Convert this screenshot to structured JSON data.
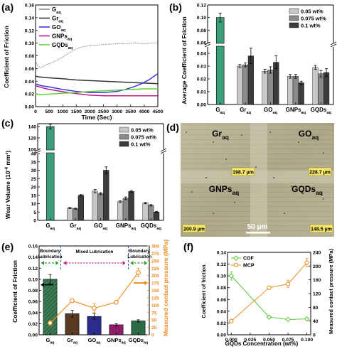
{
  "panel_labels": [
    "(a)",
    "(b)",
    "(c)",
    "(d)",
    "(e)",
    "(f)"
  ],
  "colors": {
    "Gaq": "#8c8c8c",
    "Graq": "#333333",
    "GOaq": "#3a3ae0",
    "GNPsaq": "#c2188c",
    "GQDsaq": "#62d13a",
    "bar_05": "#c8c8c8",
    "bar_075": "#8a8a8a",
    "bar_01": "#3c3c3c",
    "teal": "#3e9e7a",
    "e_bar1": "#2d6b45",
    "e_bar2": "#5a3a22",
    "e_bar3": "#2c2c8c",
    "e_bar4": "#8c1c6a",
    "e_bar5": "#2d6b45",
    "orange": "#f08a1c",
    "green_cof": "#5ac83a",
    "micro": "#b3ad8d"
  },
  "chart_data": [
    {
      "panel": "(a)",
      "type": "line",
      "xlabel": "Time (Sec)",
      "ylabel": "Coefficient of Friction",
      "xlim": [
        0,
        4500
      ],
      "ylim": [
        0.0,
        0.16
      ],
      "xticks": [
        "0",
        "500",
        "1000",
        "1500",
        "2000",
        "2500",
        "3000",
        "3500",
        "4000",
        "4500"
      ],
      "yticks": [
        "0.00",
        "0.02",
        "0.04",
        "0.06",
        "0.08",
        "0.10",
        "0.12",
        "0.14",
        "0.16"
      ],
      "legend_location": "top-left",
      "series": [
        {
          "name": "Gaq",
          "name_main": "G",
          "name_sub": "aq",
          "color": "#8c8c8c",
          "x": [
            0,
            80,
            200,
            400,
            700,
            1000,
            1300,
            1500,
            1700,
            2000,
            2300,
            2600,
            3000,
            3300,
            3600,
            4000,
            4300,
            4500
          ],
          "y": [
            0.072,
            0.064,
            0.061,
            0.066,
            0.071,
            0.078,
            0.086,
            0.091,
            0.094,
            0.096,
            0.097,
            0.098,
            0.099,
            0.099,
            0.1,
            0.099,
            0.1,
            0.1
          ]
        },
        {
          "name": "Graq",
          "name_main": "Gr",
          "name_sub": "aq",
          "color": "#333333",
          "x": [
            0,
            100,
            300,
            600,
            1000,
            1500,
            2000,
            2500,
            3000,
            3500,
            4000,
            4500
          ],
          "y": [
            0.048,
            0.047,
            0.046,
            0.045,
            0.044,
            0.042,
            0.041,
            0.04,
            0.039,
            0.038,
            0.037,
            0.036
          ]
        },
        {
          "name": "GOaq",
          "name_main": "GO",
          "name_sub": "aq",
          "color": "#3a3ae0",
          "x": [
            0,
            200,
            500,
            1000,
            1500,
            2000,
            2500,
            3000,
            3300,
            3600,
            3900,
            4200,
            4500
          ],
          "y": [
            0.036,
            0.033,
            0.031,
            0.027,
            0.024,
            0.022,
            0.022,
            0.024,
            0.027,
            0.031,
            0.036,
            0.043,
            0.052
          ]
        },
        {
          "name": "GNPsaq",
          "name_main": "GNPs",
          "name_sub": "aq",
          "color": "#c2188c",
          "x": [
            0,
            150,
            400,
            800,
            1200,
            1600,
            2000,
            2500,
            3000,
            3500,
            4000,
            4500
          ],
          "y": [
            0.033,
            0.031,
            0.028,
            0.025,
            0.022,
            0.02,
            0.018,
            0.017,
            0.017,
            0.017,
            0.017,
            0.017
          ]
        },
        {
          "name": "GQDsaq",
          "name_main": "GQDs",
          "name_sub": "aq",
          "color": "#62d13a",
          "x": [
            0,
            100,
            300,
            600,
            1000,
            1500,
            2000,
            2500,
            3000,
            3500,
            4000,
            4500
          ],
          "y": [
            0.02,
            0.019,
            0.019,
            0.02,
            0.021,
            0.022,
            0.024,
            0.025,
            0.026,
            0.027,
            0.028,
            0.028
          ]
        }
      ]
    },
    {
      "panel": "(b)",
      "type": "bar",
      "ylabel": "Average Coefficient of Friction",
      "categories": [
        "Gaq",
        "Graq",
        "GOaq",
        "GNPsaq",
        "GQDsaq"
      ],
      "category_main": [
        "G",
        "Gr",
        "GO",
        "GNPs",
        "GQDs"
      ],
      "category_sub": [
        "aq",
        "aq",
        "aq",
        "aq",
        "aq"
      ],
      "legend_location": "top-right",
      "axis_break": true,
      "ylim_lower": [
        0.0,
        0.045
      ],
      "ylim_upper": [
        0.06,
        0.12
      ],
      "yticks": [
        "0.00",
        "0.01",
        "0.02",
        "0.03",
        "0.04",
        "0.06",
        "0.08",
        "0.10",
        "0.12"
      ],
      "base_value": 0.1,
      "base_error": 0.007,
      "series": [
        {
          "name": "0.05 wt%",
          "color": "#c8c8c8",
          "values": [
            null,
            0.03,
            0.026,
            0.022,
            0.029
          ],
          "errors": [
            null,
            0.0012,
            0.0015,
            0.0015,
            0.0015
          ]
        },
        {
          "name": "0.075 wt%",
          "color": "#8a8a8a",
          "values": [
            null,
            0.031,
            0.027,
            0.022,
            0.024
          ],
          "errors": [
            null,
            0.0015,
            0.0025,
            0.0015,
            0.0025
          ]
        },
        {
          "name": "0.1 wt%",
          "color": "#3c3c3c",
          "values": [
            null,
            0.038,
            0.033,
            0.017,
            0.025
          ],
          "errors": [
            null,
            0.006,
            0.005,
            0.0012,
            0.003
          ]
        }
      ]
    },
    {
      "panel": "(c)",
      "type": "bar",
      "ylabel_main": "Wear Volume (10",
      "ylabel_sup": "-4",
      "ylabel_end": " mm³)",
      "categories": [
        "Gaq",
        "Graq",
        "GOaq",
        "GNPsaq",
        "GQDsaq"
      ],
      "category_main": [
        "G",
        "Gr",
        "GO",
        "GNPs",
        "GQDs"
      ],
      "category_sub": [
        "aq",
        "aq",
        "aq",
        "aq",
        "aq"
      ],
      "legend_location": "top-right",
      "axis_break": true,
      "ylim_lower": [
        0,
        40
      ],
      "ylim_upper": [
        100,
        145
      ],
      "yticks": [
        "0",
        "5",
        "10",
        "15",
        "20",
        "25",
        "30",
        "35",
        "40",
        "100",
        "120",
        "140"
      ],
      "base_value": 140,
      "base_error": 4,
      "series": [
        {
          "name": "0.05 wt%",
          "color": "#c8c8c8",
          "values": [
            null,
            7.4,
            17.5,
            11.2,
            10.3
          ],
          "errors": [
            null,
            0.3,
            1.0,
            0.5,
            0.4
          ]
        },
        {
          "name": "0.075 wt%",
          "color": "#8a8a8a",
          "values": [
            null,
            7.0,
            16.0,
            13.2,
            9.0
          ],
          "errors": [
            null,
            0.3,
            0.6,
            0.8,
            0.4
          ]
        },
        {
          "name": "0.1 wt%",
          "color": "#3c3c3c",
          "values": [
            null,
            15.0,
            30.0,
            17.3,
            5.0
          ],
          "errors": [
            null,
            0.4,
            2.0,
            0.6,
            0.4
          ]
        }
      ]
    },
    {
      "panel": "(e)",
      "type": "bar",
      "ylabel_left": "Coefficient of Friction",
      "ylabel_right": "Measured contact pressure (MPa)",
      "categories": [
        "Gaq",
        "Graq",
        "GOaq",
        "GNPsaq",
        "GQDsaq"
      ],
      "category_main": [
        "G",
        "Gr",
        "GO",
        "GNPs",
        "GQDs"
      ],
      "category_sub": [
        "aq",
        "aq",
        "aq",
        "aq",
        "aq"
      ],
      "ylim_left": [
        0,
        0.16
      ],
      "ylim_right": [
        0,
        300
      ],
      "yticks_left": [
        "0.00",
        "0.02",
        "0.04",
        "0.06",
        "0.08",
        "0.10",
        "0.12",
        "0.14",
        "0.16"
      ],
      "yticks_right": [
        "0",
        "25",
        "50",
        "75",
        "100",
        "125",
        "150",
        "175",
        "200",
        "225",
        "250",
        "275",
        "300"
      ],
      "cof_values": [
        0.1,
        0.038,
        0.033,
        0.018,
        0.025
      ],
      "cof_errors": [
        0.008,
        0.006,
        0.005,
        0.002,
        0.002
      ],
      "pressure_values": [
        40,
        115,
        90,
        110,
        210
      ],
      "pressure_errors": [
        8,
        6,
        15,
        4,
        14
      ],
      "regions": [
        "Boundary Lubrication",
        "Mixed Lubrication",
        "Boundary Lubrication"
      ]
    },
    {
      "panel": "(f)",
      "type": "line",
      "xlabel": "GQDs Concentration (wt%)",
      "ylabel_left": "Coefficient of friction",
      "ylabel_right": "Measured contact pressure (MPa)",
      "xlim": [
        -0.005,
        0.105
      ],
      "xticks": [
        "0.000",
        "0.025",
        "0.050",
        "0.075",
        "0.100"
      ],
      "ylim_left": [
        0,
        0.14
      ],
      "yticks_left": [
        "0.00",
        "0.02",
        "0.04",
        "0.06",
        "0.08",
        "0.10",
        "0.12",
        "0.14"
      ],
      "ylim_right": [
        0,
        240
      ],
      "yticks_right": [
        "0",
        "40",
        "80",
        "120",
        "160",
        "200",
        "240"
      ],
      "legend_location": "top-left",
      "series": [
        {
          "name": "COF",
          "axis": "left",
          "color": "#5ac83a",
          "x": [
            0.0,
            0.05,
            0.075,
            0.1
          ],
          "y": [
            0.1,
            0.03,
            0.026,
            0.027
          ],
          "errors": [
            0.007,
            0.002,
            0.002,
            0.002
          ]
        },
        {
          "name": "MCP",
          "axis": "right",
          "color": "#f08a1c",
          "x": [
            0.0,
            0.05,
            0.075,
            0.1
          ],
          "y": [
            40,
            137,
            148,
            210
          ],
          "errors": [
            4,
            4,
            10,
            12
          ]
        }
      ]
    }
  ],
  "micrograph": {
    "panel": "(d)",
    "labels": [
      {
        "main": "Gr",
        "sub": "aq"
      },
      {
        "main": "GO",
        "sub": "aq"
      },
      {
        "main": "GNPs",
        "sub": "aq"
      },
      {
        "main": "GQDs",
        "sub": "aq"
      }
    ],
    "measurements": [
      "198.7 µm",
      "228.7 µm",
      "200.9 µm",
      "148.5 µm"
    ],
    "scale_bar": "50 µm"
  }
}
